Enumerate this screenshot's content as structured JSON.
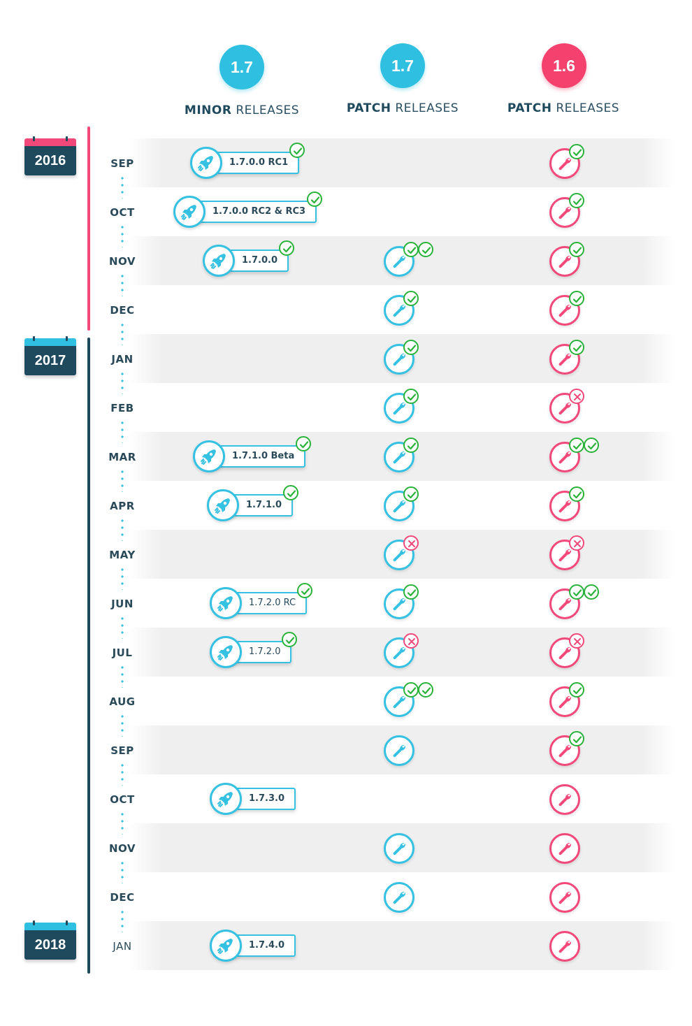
{
  "columns": [
    {
      "version": "1.7",
      "kind": "MINOR",
      "suffix": "RELEASES",
      "color": "#2fbfe0"
    },
    {
      "version": "1.7",
      "kind": "PATCH",
      "suffix": "RELEASES",
      "color": "#2fbfe0"
    },
    {
      "version": "1.6",
      "kind": "PATCH",
      "suffix": "RELEASES",
      "color": "#f4416d"
    }
  ],
  "years": [
    {
      "label": "2016",
      "accent": "#f2487a"
    },
    {
      "label": "2017",
      "accent": "#2fbfe0"
    },
    {
      "label": "2018",
      "accent": "#2fbfe0"
    }
  ],
  "rows": [
    {
      "month": "SEP",
      "minor": {
        "label": "1.7.0.0 RC1",
        "status": [
          "ok"
        ]
      },
      "patch17": null,
      "patch16": [
        "ok"
      ]
    },
    {
      "month": "OCT",
      "minor": {
        "label": "1.7.0.0 RC2 & RC3",
        "status": [
          "ok"
        ]
      },
      "patch17": null,
      "patch16": [
        "ok"
      ]
    },
    {
      "month": "NOV",
      "minor": {
        "label": "1.7.0.0",
        "status": [
          "ok"
        ]
      },
      "patch17": [
        "ok",
        "ok"
      ],
      "patch16": [
        "ok"
      ]
    },
    {
      "month": "DEC",
      "minor": null,
      "patch17": [
        "ok"
      ],
      "patch16": [
        "ok"
      ]
    },
    {
      "month": "JAN",
      "minor": null,
      "patch17": [
        "ok"
      ],
      "patch16": [
        "ok"
      ]
    },
    {
      "month": "FEB",
      "minor": null,
      "patch17": [
        "ok"
      ],
      "patch16": [
        "fail"
      ]
    },
    {
      "month": "MAR",
      "minor": {
        "label": "1.7.1.0 Beta",
        "status": [
          "ok"
        ]
      },
      "patch17": [
        "ok"
      ],
      "patch16": [
        "ok",
        "ok"
      ]
    },
    {
      "month": "APR",
      "minor": {
        "label": "1.7.1.0",
        "status": [
          "ok"
        ]
      },
      "patch17": [
        "ok"
      ],
      "patch16": [
        "ok"
      ]
    },
    {
      "month": "MAY",
      "minor": null,
      "patch17": [
        "fail"
      ],
      "patch16": [
        "fail"
      ]
    },
    {
      "month": "JUN",
      "minor": {
        "label": "1.7.2.0 RC",
        "status": [
          "ok"
        ]
      },
      "patch17": [
        "ok"
      ],
      "patch16": [
        "ok",
        "ok"
      ]
    },
    {
      "month": "JUL",
      "minor": {
        "label": "1.7.2.0",
        "status": [
          "ok"
        ]
      },
      "patch17": [
        "fail"
      ],
      "patch16": [
        "fail"
      ]
    },
    {
      "month": "AUG",
      "minor": null,
      "patch17": [
        "ok",
        "ok"
      ],
      "patch16": [
        "ok"
      ]
    },
    {
      "month": "SEP",
      "minor": null,
      "patch17": [],
      "patch16": [
        "ok"
      ]
    },
    {
      "month": "OCT",
      "minor": {
        "label": "1.7.3.0",
        "status": []
      },
      "patch17": null,
      "patch16": []
    },
    {
      "month": "NOV",
      "minor": null,
      "patch17": [],
      "patch16": []
    },
    {
      "month": "DEC",
      "minor": null,
      "patch17": [],
      "patch16": []
    },
    {
      "month": "JAN",
      "minor": {
        "label": "1.7.4.0",
        "status": []
      },
      "patch17": null,
      "patch16": []
    }
  ],
  "icons": {
    "minor": "rocket-icon",
    "patch": "wrench-icon",
    "ok": "check-icon",
    "fail": "cross-icon"
  },
  "colors": {
    "teal": "#35c1e2",
    "pink": "#f2487a",
    "navy": "#1f4a5e",
    "ok": "#2ab33a"
  }
}
